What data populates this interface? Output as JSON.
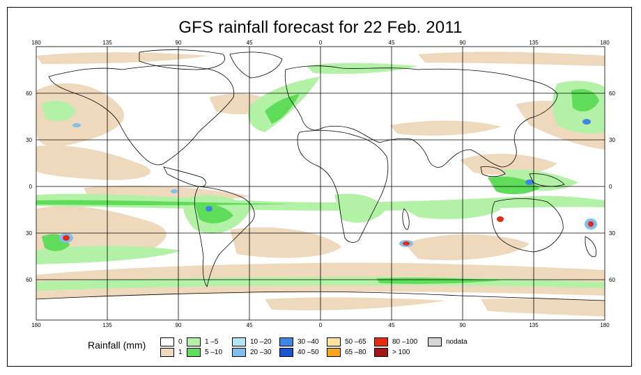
{
  "title": "GFS rainfall forecast for 22 Feb. 2011",
  "map": {
    "top_lon_labels": [
      "180",
      "135",
      "90",
      "45",
      "0",
      "45",
      "90",
      "135",
      "180"
    ],
    "bottom_lon_labels": [
      "180",
      "135",
      "90",
      "45",
      "0",
      "45",
      "90",
      "135",
      "180"
    ],
    "left_lat_labels": [
      "60",
      "30",
      "0",
      "30",
      "60"
    ],
    "right_lat_labels": [
      "60",
      "30",
      "0",
      "30",
      "60"
    ]
  },
  "legend": {
    "title": "Rainfall (mm)",
    "entries": [
      {
        "label": "0",
        "color": "#ffffff"
      },
      {
        "label": "1",
        "color": "#efd9bd"
      },
      {
        "label": "1 –5",
        "color": "#b3f2a6"
      },
      {
        "label": "5 –10",
        "color": "#5fdc5a"
      },
      {
        "label": "10 –20",
        "color": "#b0e6f5"
      },
      {
        "label": "20 –30",
        "color": "#7fbff0"
      },
      {
        "label": "30 –40",
        "color": "#3d86e6"
      },
      {
        "label": "40 –50",
        "color": "#1a55d6"
      },
      {
        "label": "50 –65",
        "color": "#fde49a"
      },
      {
        "label": "65 –80",
        "color": "#f7a51c"
      },
      {
        "label": "80 –100",
        "color": "#e52a10"
      },
      {
        "label": "> 100",
        "color": "#a31616"
      },
      {
        "label": "nodata",
        "color": "#d6d6d6"
      }
    ]
  }
}
